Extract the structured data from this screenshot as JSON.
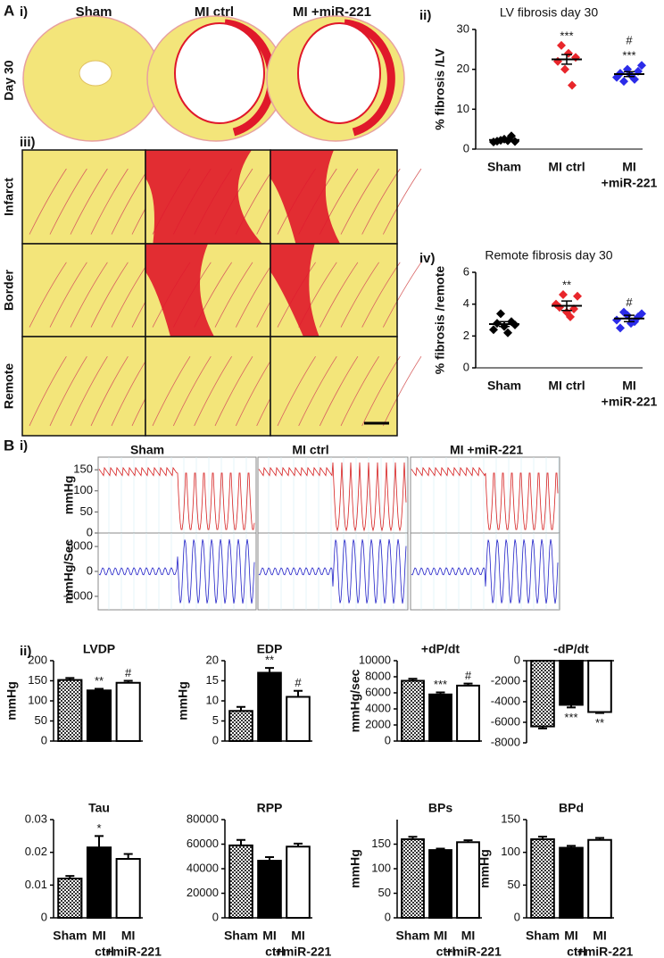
{
  "labels": {
    "A": "A",
    "A_i": "i)",
    "A_iii": "iii)",
    "B": "B",
    "B_i": "i)",
    "B_ii": "ii)"
  },
  "histology": {
    "columns": [
      "Sham",
      "MI ctrl",
      "MI +miR-221"
    ],
    "day_label": "Day 30",
    "rows": [
      "Infarct",
      "Border",
      "Remote"
    ]
  },
  "traces": {
    "columns": [
      "Sham",
      "MI ctrl",
      "MI +miR-221"
    ],
    "pressure": {
      "ylabel": "mmHg",
      "ylim": [
        0,
        180
      ],
      "yticks": [
        0,
        50,
        100,
        150
      ]
    },
    "derivative": {
      "ylabel": "mmHg/Sec",
      "ylim": [
        -7700,
        7700
      ],
      "yticks": [
        -5000,
        0,
        5000
      ]
    }
  },
  "bar_fills": [
    "checkered",
    "#000000",
    "#ffffff"
  ],
  "chart_data": [
    {
      "type": "dot",
      "panel_label": "ii)",
      "title": "LV fibrosis day 30",
      "ylabel": "% fibrosis /LV",
      "categories": [
        [
          "Sham"
        ],
        [
          "MI ctrl"
        ],
        [
          "MI",
          "+miR-221"
        ]
      ],
      "groups": [
        {
          "color": "#000000",
          "values": [
            1.8,
            2.0,
            2.2,
            2.5,
            2.1,
            3.3,
            1.9
          ],
          "mean": 2.3,
          "error": 0.2
        },
        {
          "color": "#e8262b",
          "values": [
            22,
            26,
            20,
            24,
            16,
            23
          ],
          "mean": 22.5,
          "error": 1.2
        },
        {
          "color": "#2b2be8",
          "values": [
            18,
            19,
            17,
            20,
            18.5,
            17.5,
            19.5,
            21
          ],
          "mean": 18.8,
          "error": 0.6
        }
      ],
      "annotations": [
        null,
        [
          "***"
        ],
        [
          "#",
          "***"
        ]
      ],
      "ylim": [
        0,
        30
      ],
      "yticks": [
        0,
        10,
        20,
        30
      ]
    },
    {
      "type": "dot",
      "panel_label": "iv)",
      "title": "Remote fibrosis day 30",
      "ylabel": "% fibrosis /remote",
      "categories": [
        [
          "Sham"
        ],
        [
          "MI ctrl"
        ],
        [
          "MI",
          "+miR-221"
        ]
      ],
      "groups": [
        {
          "color": "#000000",
          "values": [
            2.4,
            2.8,
            3.4,
            2.6,
            2.2,
            2.9,
            2.7
          ],
          "mean": 2.75,
          "error": 0.15
        },
        {
          "color": "#e8262b",
          "values": [
            4.0,
            3.8,
            4.6,
            3.5,
            3.2,
            3.7,
            4.5
          ],
          "mean": 3.9,
          "error": 0.3
        },
        {
          "color": "#2b2be8",
          "values": [
            3.0,
            2.5,
            3.5,
            3.3,
            2.8,
            2.9,
            3.2,
            3.4
          ],
          "mean": 3.1,
          "error": 0.2
        }
      ],
      "annotations": [
        null,
        [
          "**"
        ],
        [
          "#"
        ]
      ],
      "ylim": [
        0,
        6
      ],
      "yticks": [
        0,
        2,
        4,
        6
      ]
    },
    {
      "type": "bar",
      "title": "LVDP",
      "ylabel": "mmHg",
      "values": [
        152,
        126,
        145
      ],
      "errors": [
        5,
        4,
        5
      ],
      "annotations": [
        null,
        [
          "**"
        ],
        [
          "#"
        ]
      ],
      "ylim": [
        0,
        200
      ],
      "yticks": [
        0,
        50,
        100,
        150,
        200
      ]
    },
    {
      "type": "bar",
      "title": "EDP",
      "ylabel": "mmHg",
      "values": [
        7.5,
        17,
        11
      ],
      "errors": [
        1,
        1.2,
        1.5
      ],
      "annotations": [
        null,
        [
          "**"
        ],
        [
          "#"
        ]
      ],
      "ylim": [
        0,
        20
      ],
      "yticks": [
        0,
        5,
        10,
        15,
        20
      ]
    },
    {
      "type": "bar",
      "title": "+dP/dt",
      "ylabel": "mmHg/sec",
      "values": [
        7500,
        5800,
        6900
      ],
      "errors": [
        250,
        250,
        250
      ],
      "annotations": [
        null,
        [
          "***"
        ],
        [
          "#"
        ]
      ],
      "ylim": [
        0,
        10000
      ],
      "yticks": [
        0,
        2000,
        4000,
        6000,
        8000,
        10000
      ]
    },
    {
      "type": "bar",
      "title": "-dP/dt",
      "values": [
        -6400,
        -4300,
        -5000
      ],
      "errors": [
        200,
        250,
        100
      ],
      "annotations": [
        null,
        [
          "***"
        ],
        [
          "**"
        ]
      ],
      "ylim": [
        -8000,
        0
      ],
      "yticks": [
        0,
        -2000,
        -4000,
        -6000,
        -8000
      ]
    },
    {
      "type": "bar",
      "title": "Tau",
      "values": [
        0.012,
        0.0215,
        0.018
      ],
      "errors": [
        0.0008,
        0.0035,
        0.0015
      ],
      "annotations": [
        null,
        [
          "*"
        ],
        null
      ],
      "ylim": [
        0,
        0.03
      ],
      "yticks": [
        0,
        0.01,
        0.02,
        0.03
      ],
      "categories": [
        [
          "Sham"
        ],
        [
          "MI",
          "ctrl"
        ],
        [
          "MI",
          "+miR-221"
        ]
      ]
    },
    {
      "type": "bar",
      "title": "RPP",
      "values": [
        59000,
        46500,
        58000
      ],
      "errors": [
        4500,
        3000,
        2500
      ],
      "ylim": [
        0,
        80000
      ],
      "yticks": [
        0,
        20000,
        40000,
        60000,
        80000
      ],
      "categories": [
        [
          "Sham"
        ],
        [
          "MI",
          "ctrl"
        ],
        [
          "MI",
          "+miR-221"
        ]
      ]
    },
    {
      "type": "bar",
      "title": "BPs",
      "ylabel": "mmHg",
      "values": [
        160,
        138,
        154
      ],
      "errors": [
        5,
        3,
        4
      ],
      "ylim": [
        0,
        200
      ],
      "yticks": [
        0,
        50,
        100,
        150
      ],
      "categories": [
        [
          "Sham"
        ],
        [
          "MI",
          "ctrl"
        ],
        [
          "MI",
          "+miR-221"
        ]
      ]
    },
    {
      "type": "bar",
      "title": "BPd",
      "ylabel": "mmHg",
      "values": [
        120,
        107,
        119
      ],
      "errors": [
        4,
        3,
        3
      ],
      "ylim": [
        0,
        150
      ],
      "yticks": [
        0,
        50,
        100,
        150
      ],
      "categories": [
        [
          "Sham"
        ],
        [
          "MI",
          "ctrl"
        ],
        [
          "MI",
          "+miR-221"
        ]
      ]
    }
  ]
}
